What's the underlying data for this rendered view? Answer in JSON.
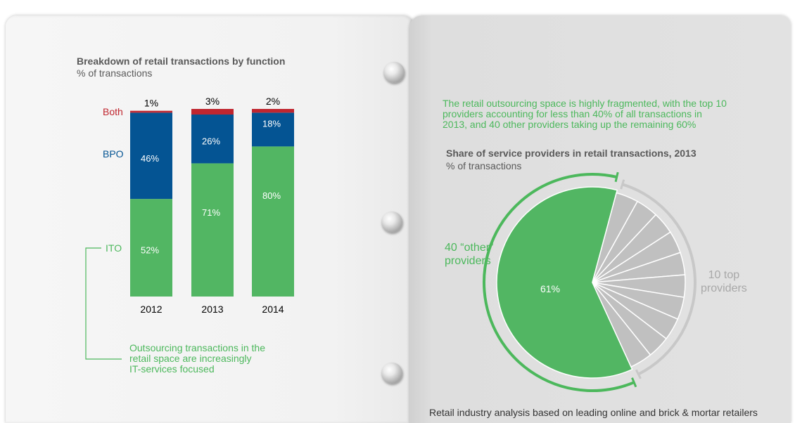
{
  "chart_data": [
    {
      "type": "bar",
      "stacked": true,
      "title": "Breakdown of retail transactions by function",
      "subtitle": "% of transactions",
      "categories": [
        "2012",
        "2013",
        "2014"
      ],
      "series": [
        {
          "name": "ITO",
          "values": [
            52,
            71,
            80
          ],
          "labels": [
            "52%",
            "71%",
            "80%"
          ],
          "color": "#52b663"
        },
        {
          "name": "BPO",
          "values": [
            46,
            26,
            18
          ],
          "labels": [
            "46%",
            "26%",
            "18%"
          ],
          "color": "#045493"
        },
        {
          "name": "Both",
          "values": [
            1,
            3,
            2
          ],
          "labels": [
            "1%",
            "3%",
            "2%"
          ],
          "color": "#c0262f"
        }
      ],
      "ylim": [
        0,
        100
      ],
      "annotation": "Outsourcing transactions in the retail space are increasingly IT-services focused"
    },
    {
      "type": "pie",
      "title": "Share of service providers in retail transactions, 2013",
      "subtitle": "% of transactions",
      "slices": [
        {
          "name": "40 “other” providers",
          "value": 61,
          "label": "61%",
          "color": "#52b663"
        },
        {
          "name": "10 top providers",
          "value": 39,
          "label": "",
          "color": "#c0c0c0",
          "segments": 10
        }
      ]
    }
  ],
  "left": {
    "chart_title": "Breakdown of retail transactions by function",
    "chart_subtitle": "% of transactions",
    "legend_both": "Both",
    "legend_bpo": "BPO",
    "legend_ito": "ITO",
    "note_lines": [
      "Outsourcing transactions in the",
      "retail space are increasingly",
      "IT-services focused"
    ]
  },
  "right": {
    "intro_lines": [
      "The retail outsourcing space is highly fragmented, with the top 10",
      "providers accounting for less than 40% of all transactions in",
      "2013, and 40 other providers taking up the remaining 60%"
    ],
    "chart_title": "Share of service providers in retail transactions, 2013",
    "chart_subtitle": "% of transactions",
    "label_other_lines": [
      "40 “other”",
      "providers"
    ],
    "label_top_lines": [
      "10 top",
      "providers"
    ],
    "pie_value_label": "61%",
    "footer": "Retail industry analysis based on leading online and brick & mortar retailers"
  },
  "colors": {
    "ito": "#52b663",
    "bpo": "#045493",
    "both": "#c0262f",
    "green_text": "#4cb85c",
    "grey_slice": "#c0c0c0"
  }
}
